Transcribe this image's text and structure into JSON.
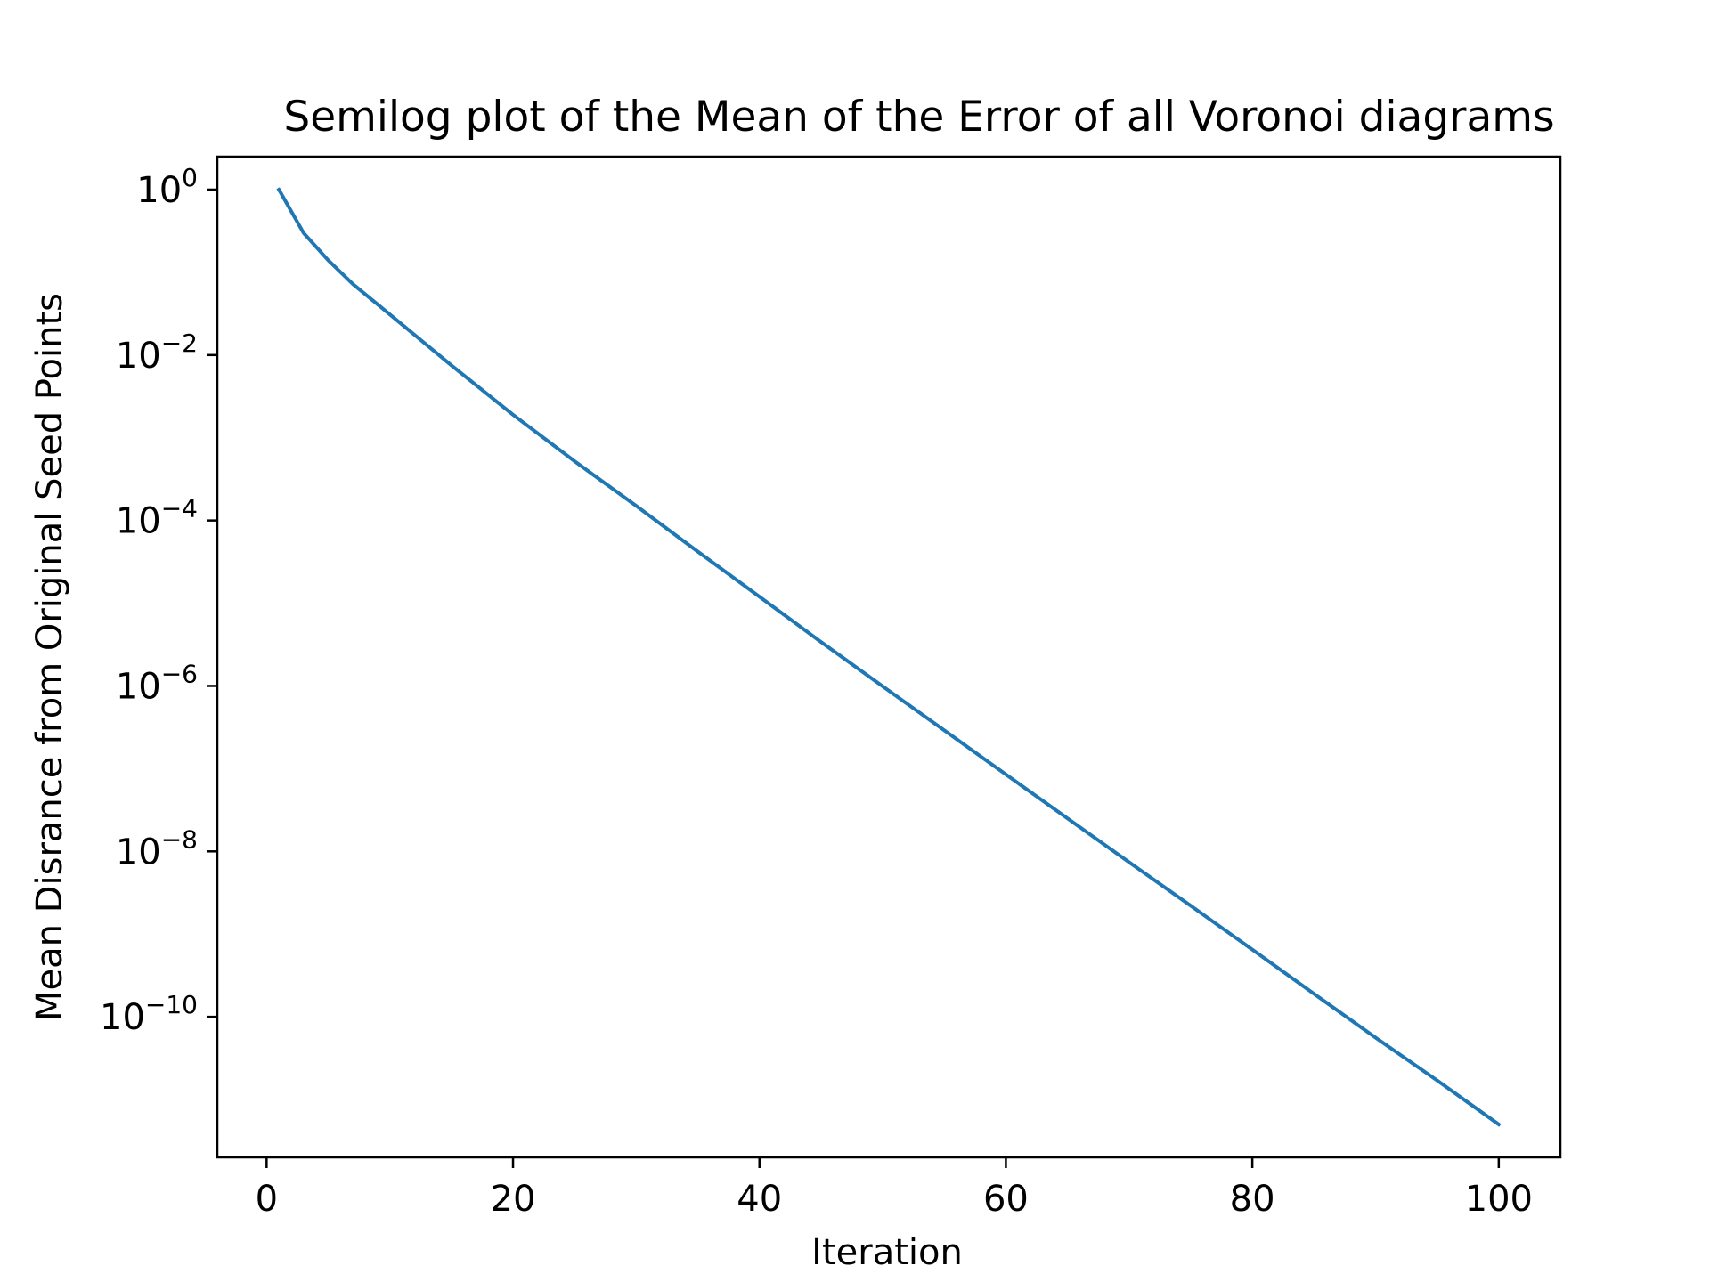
{
  "chart_data": {
    "type": "line",
    "title": "Semilog plot of the Mean of the Error of all Voronoi diagrams",
    "xlabel": "Iteration",
    "ylabel": "Mean Disrance from Original Seed Points",
    "yscale": "log",
    "xlim": [
      -4,
      105
    ],
    "ylim": [
      2e-12,
      2.5
    ],
    "grid": false,
    "legend": "none",
    "line_color": "#1f77b4",
    "x_ticks": [
      {
        "value": 0,
        "label": "0"
      },
      {
        "value": 20,
        "label": "20"
      },
      {
        "value": 40,
        "label": "40"
      },
      {
        "value": 60,
        "label": "60"
      },
      {
        "value": 80,
        "label": "80"
      },
      {
        "value": 100,
        "label": "100"
      }
    ],
    "y_ticks": [
      {
        "value": 1,
        "base": "10",
        "exp": "0"
      },
      {
        "value": 0.01,
        "base": "10",
        "exp": "−2"
      },
      {
        "value": 0.0001,
        "base": "10",
        "exp": "−4"
      },
      {
        "value": 1e-06,
        "base": "10",
        "exp": "−6"
      },
      {
        "value": 1e-08,
        "base": "10",
        "exp": "−8"
      },
      {
        "value": 1e-10,
        "base": "10",
        "exp": "−10"
      }
    ],
    "series": [
      {
        "x": [
          1,
          3,
          5,
          7,
          10,
          15,
          20,
          25,
          30,
          35,
          40,
          45,
          50,
          55,
          60,
          65,
          70,
          75,
          80,
          85,
          90,
          95,
          100
        ],
        "values": [
          1.0,
          0.3,
          0.14,
          0.072,
          0.031,
          0.0075,
          0.0019,
          0.00052,
          0.00015,
          4.2e-05,
          1.2e-05,
          3.4e-06,
          9.9e-07,
          2.9e-07,
          8.5e-08,
          2.5e-08,
          7.4e-09,
          2.2e-09,
          6.5e-10,
          1.9e-10,
          5.6e-11,
          1.7e-11,
          5e-12
        ]
      }
    ]
  }
}
